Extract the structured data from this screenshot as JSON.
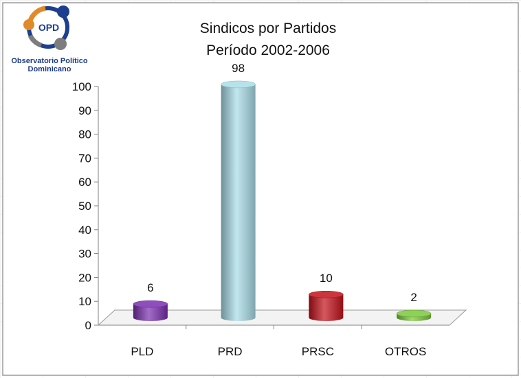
{
  "logo": {
    "mark": "OPD",
    "line1": "Observatorio Político",
    "line2": "Dominicano",
    "colors": {
      "blue": "#1d3f8f",
      "orange": "#e08a2a",
      "gray": "#7d7d7d"
    }
  },
  "chart_data": {
    "type": "bar",
    "title": "Sindicos por Partidos",
    "subtitle": "Período 2002-2006",
    "categories": [
      "PLD",
      "PRD",
      "PRSC",
      "OTROS"
    ],
    "values": [
      6,
      98,
      10,
      2
    ],
    "data_labels": [
      "6",
      "98",
      "10",
      "2"
    ],
    "colors": [
      "#7a2fb0",
      "#a9dde8",
      "#c4111a",
      "#7bc83a"
    ],
    "ylim": [
      0,
      100
    ],
    "yticks": [
      0,
      10,
      20,
      30,
      40,
      50,
      60,
      70,
      80,
      90,
      100
    ],
    "ytick_labels": [
      "0",
      "10",
      "20",
      "30",
      "40",
      "50",
      "60",
      "70",
      "80",
      "90",
      "100"
    ],
    "xlabel": "",
    "ylabel": "",
    "grid": false,
    "legend": "none",
    "style": "3d-cylinder"
  }
}
